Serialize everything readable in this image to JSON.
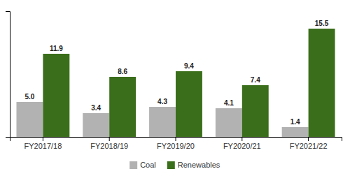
{
  "chart_data": {
    "type": "bar",
    "categories": [
      "FY2017/18",
      "FY2018/19",
      "FY2019/20",
      "FY2020/21",
      "FY2021/22"
    ],
    "series": [
      {
        "name": "Coal",
        "color": "#b2b2b2",
        "values": [
          5.0,
          3.4,
          4.3,
          4.1,
          1.4
        ],
        "value_labels": [
          "5.0",
          "3.4",
          "4.3",
          "4.1",
          "1.4"
        ]
      },
      {
        "name": "Renewables",
        "color": "#3a6e1a",
        "values": [
          11.9,
          8.6,
          9.4,
          7.4,
          15.5
        ],
        "value_labels": [
          "11.9",
          "8.6",
          "9.4",
          "7.4",
          "15.5"
        ]
      }
    ],
    "ylim": [
      0,
      18
    ],
    "yticks": [],
    "grid": false,
    "data_labels": true,
    "tick_labels": "x",
    "legend": "bottom"
  }
}
